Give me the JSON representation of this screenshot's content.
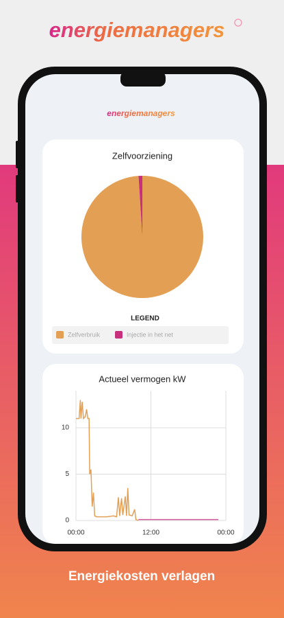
{
  "brand": "energiemanagers",
  "app_logo": "energiemanagers",
  "tagline": "Energiekosten verlagen",
  "chart_data": [
    {
      "type": "pie",
      "title": "Zelfvoorziening",
      "legend_title": "LEGEND",
      "categories": [
        "Zelfverbruik",
        "Injectie in het net"
      ],
      "values": [
        99,
        1
      ],
      "colors": [
        "#e3a055",
        "#c8307e"
      ]
    },
    {
      "type": "line",
      "title": "Actueel vermogen kW",
      "xlim": [
        0,
        24
      ],
      "xticks": [
        {
          "value": 0,
          "label": "00:00"
        },
        {
          "value": 12,
          "label": "12:00"
        },
        {
          "value": 24,
          "label": "00:00"
        }
      ],
      "ylim": [
        0,
        14
      ],
      "yticks": [
        0,
        5,
        10
      ],
      "grid": true,
      "series": [
        {
          "color": "#e3a055",
          "x": [
            0,
            0.5,
            0.7,
            0.8,
            1.0,
            1.2,
            1.5,
            1.7,
            1.9,
            2.1,
            2.2,
            2.4,
            2.6,
            2.8,
            3.0,
            3.3,
            4,
            5,
            6,
            6.5,
            6.8,
            7,
            7.3,
            7.5,
            7.9,
            8.1,
            8.3,
            8.5,
            9,
            9.4,
            9.6,
            10
          ],
          "values": [
            11,
            11,
            13,
            11,
            12.8,
            11,
            11.2,
            12,
            11,
            11,
            5,
            5.5,
            1.5,
            3,
            0.5,
            0.4,
            0.4,
            0.4,
            0.5,
            0.4,
            2.5,
            0.5,
            2.4,
            0.6,
            2.6,
            0.5,
            3.5,
            0.6,
            0.5,
            1.2,
            0.1,
            0
          ]
        },
        {
          "color": "#d35a9a",
          "x": [
            10,
            12,
            15,
            18,
            21,
            22.8
          ],
          "values": [
            0.1,
            0.1,
            0.1,
            0.1,
            0.1,
            0.1
          ]
        }
      ]
    }
  ]
}
